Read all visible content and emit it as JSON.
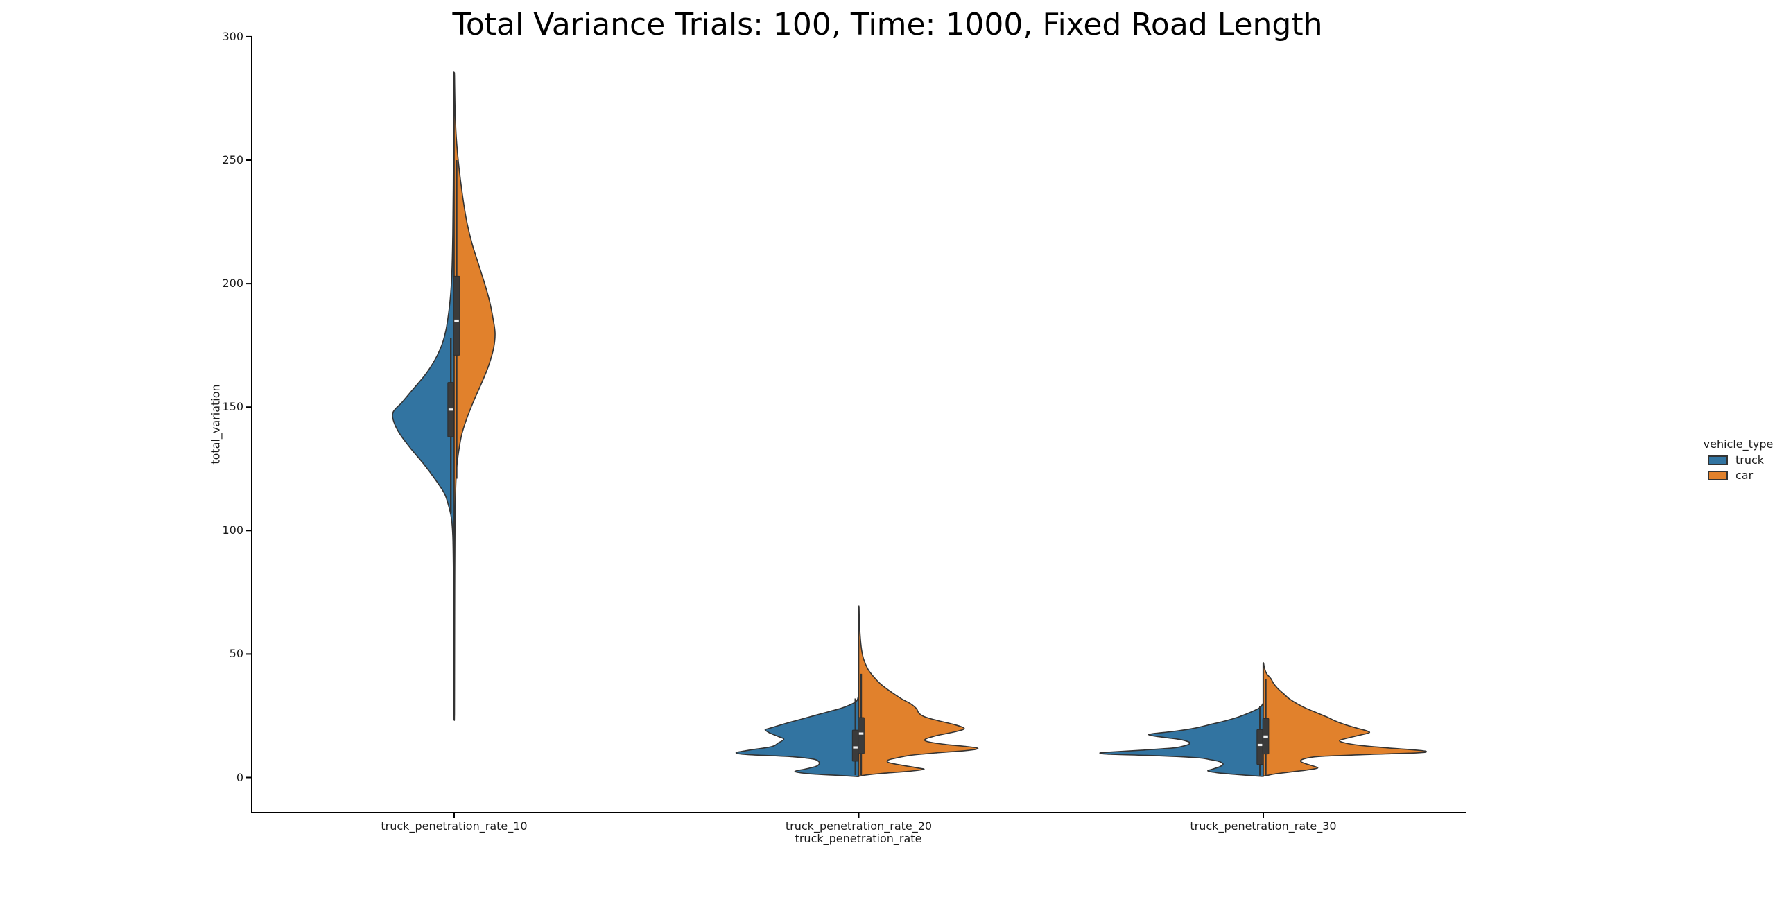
{
  "title": "Total Variance Trials: 100, Time: 1000, Fixed Road Length",
  "chart_data": {
    "type": "violin",
    "split_by_hue": true,
    "grid": false,
    "title": "Total Variance Trials: 100, Time: 1000, Fixed Road Length",
    "xlabel": "truck_penetration_rate",
    "ylabel": "total_variation",
    "categories": [
      "truck_penetration_rate_10",
      "truck_penetration_rate_20",
      "truck_penetration_rate_30"
    ],
    "ytick_labels": [
      "0",
      "50",
      "100",
      "150",
      "200",
      "250",
      "300"
    ],
    "ytick_values": [
      0,
      50,
      100,
      150,
      200,
      250,
      300
    ],
    "ylim": [
      -14,
      300
    ],
    "legend": {
      "title": "vehicle_type",
      "position": "right-outside",
      "entries": [
        {
          "label": "truck",
          "color": "#3274a1"
        },
        {
          "label": "car",
          "color": "#e1812c"
        }
      ]
    },
    "style": {
      "edge_color": "#333333",
      "box_fill": "#3b3b3b",
      "median_color": "#f2f2f2",
      "spine_color": "#000000"
    },
    "violins": [
      {
        "category": "truck_penetration_rate_10",
        "range": [
          25,
          284.5
        ],
        "halves": [
          {
            "vehicle_type": "truck",
            "side": "left",
            "color": "#3274a1",
            "box": {
              "median": 149,
              "q1": 138,
              "q3": 160,
              "whisker_low": 107,
              "whisker_high": 178
            },
            "peak_value": 148,
            "profile": [
              [
                284,
                0.5
              ],
              [
                262,
                0.9
              ],
              [
                240,
                1.3
              ],
              [
                220,
                2
              ],
              [
                205,
                3.2
              ],
              [
                196,
                5
              ],
              [
                188,
                8
              ],
              [
                181,
                12
              ],
              [
                175,
                18
              ],
              [
                169,
                28
              ],
              [
                163,
                42
              ],
              [
                157,
                60
              ],
              [
                152,
                75
              ],
              [
                148,
                88
              ],
              [
                144,
                87
              ],
              [
                139,
                78
              ],
              [
                133,
                62
              ],
              [
                127,
                44
              ],
              [
                121,
                28
              ],
              [
                115,
                14
              ],
              [
                110,
                8
              ],
              [
                105,
                4
              ],
              [
                98,
                2
              ],
              [
                85,
                1.2
              ],
              [
                65,
                0.8
              ],
              [
                45,
                0.6
              ],
              [
                25,
                0.4
              ]
            ]
          },
          {
            "vehicle_type": "car",
            "side": "right",
            "color": "#e1812c",
            "box": {
              "median": 185,
              "q1": 171,
              "q3": 203,
              "whisker_low": 121,
              "whisker_high": 250
            },
            "peak_value": 180,
            "profile": [
              [
                284.5,
                0.5
              ],
              [
                272,
                1.2
              ],
              [
                262,
                2.5
              ],
              [
                254,
                4.5
              ],
              [
                247,
                7
              ],
              [
                240,
                10
              ],
              [
                232,
                14
              ],
              [
                224,
                19
              ],
              [
                216,
                26
              ],
              [
                208,
                35
              ],
              [
                200,
                44
              ],
              [
                193,
                51
              ],
              [
                186,
                56
              ],
              [
                180,
                59
              ],
              [
                174,
                57
              ],
              [
                167,
                50
              ],
              [
                160,
                40
              ],
              [
                153,
                29
              ],
              [
                146,
                19
              ],
              [
                139,
                11
              ],
              [
                132,
                6.5
              ],
              [
                125,
                3.5
              ],
              [
                115,
                2
              ],
              [
                100,
                1.2
              ],
              [
                75,
                0.8
              ],
              [
                50,
                0.6
              ],
              [
                25,
                0.4
              ]
            ]
          }
        ]
      },
      {
        "category": "truck_penetration_rate_20",
        "range": [
          0.4,
          69
        ],
        "halves": [
          {
            "vehicle_type": "truck",
            "side": "left",
            "color": "#3274a1",
            "box": {
              "median": 12.2,
              "q1": 6.6,
              "q3": 19.2,
              "whisker_low": 1,
              "whisker_high": 32
            },
            "peak_value": 10,
            "profile": [
              [
                33,
                0.5
              ],
              [
                31,
                3
              ],
              [
                29.5,
                12
              ],
              [
                28,
                26
              ],
              [
                26,
                52
              ],
              [
                24,
                78
              ],
              [
                22,
                104
              ],
              [
                20,
                128
              ],
              [
                19.3,
                135
              ],
              [
                18,
                128
              ],
              [
                16.5,
                115
              ],
              [
                15.5,
                108
              ],
              [
                14,
                116
              ],
              [
                12.5,
                126
              ],
              [
                11,
                160
              ],
              [
                10,
                177
              ],
              [
                9.3,
                160
              ],
              [
                8.5,
                100
              ],
              [
                7.5,
                66
              ],
              [
                6.5,
                58
              ],
              [
                5.5,
                57
              ],
              [
                4.5,
                62
              ],
              [
                3.5,
                76
              ],
              [
                2.4,
                92
              ],
              [
                1.5,
                70
              ],
              [
                0.8,
                25
              ],
              [
                0.4,
                3
              ]
            ]
          },
          {
            "vehicle_type": "car",
            "side": "right",
            "color": "#e1812c",
            "box": {
              "median": 17.8,
              "q1": 9.7,
              "q3": 24.3,
              "whisker_low": 1,
              "whisker_high": 42
            },
            "peak_value": 12,
            "profile": [
              [
                69,
                0.4
              ],
              [
                63,
                1
              ],
              [
                57,
                2.2
              ],
              [
                52,
                4
              ],
              [
                48,
                7
              ],
              [
                44,
                13
              ],
              [
                41,
                21
              ],
              [
                38,
                31
              ],
              [
                35,
                45
              ],
              [
                32,
                61
              ],
              [
                30,
                74
              ],
              [
                28,
                83
              ],
              [
                26,
                87
              ],
              [
                24.5,
                96
              ],
              [
                23,
                115
              ],
              [
                21.5,
                137
              ],
              [
                20,
                152
              ],
              [
                18.8,
                143
              ],
              [
                17,
                113
              ],
              [
                15.5,
                96
              ],
              [
                14.5,
                100
              ],
              [
                13.5,
                122
              ],
              [
                12.5,
                158
              ],
              [
                11.8,
                172
              ],
              [
                11,
                158
              ],
              [
                10,
                112
              ],
              [
                9,
                75
              ],
              [
                8,
                56
              ],
              [
                7,
                42
              ],
              [
                6,
                44
              ],
              [
                5,
                62
              ],
              [
                4,
                83
              ],
              [
                3.3,
                94
              ],
              [
                2.5,
                72
              ],
              [
                1.7,
                35
              ],
              [
                1,
                10
              ],
              [
                0.6,
                2
              ]
            ]
          }
        ]
      },
      {
        "category": "truck_penetration_rate_30",
        "range": [
          0.4,
          46.3
        ],
        "halves": [
          {
            "vehicle_type": "truck",
            "side": "left",
            "color": "#3274a1",
            "box": {
              "median": 13.2,
              "q1": 5.3,
              "q3": 19.4,
              "whisker_low": 0.8,
              "whisker_high": 29
            },
            "peak_value": 10,
            "profile": [
              [
                30,
                0.4
              ],
              [
                28.5,
                4
              ],
              [
                27.5,
                10
              ],
              [
                26,
                22
              ],
              [
                24.5,
                36
              ],
              [
                23,
                54
              ],
              [
                21.5,
                76
              ],
              [
                20,
                99
              ],
              [
                18.8,
                126
              ],
              [
                17.8,
                158
              ],
              [
                17.3,
                165
              ],
              [
                16.5,
                150
              ],
              [
                15.5,
                122
              ],
              [
                14.5,
                108
              ],
              [
                13.8,
                106
              ],
              [
                13,
                112
              ],
              [
                12,
                130
              ],
              [
                11,
                180
              ],
              [
                10.2,
                228
              ],
              [
                9.8,
                235
              ],
              [
                9.4,
                220
              ],
              [
                8.8,
                150
              ],
              [
                8,
                95
              ],
              [
                7.3,
                78
              ],
              [
                6.5,
                64
              ],
              [
                5.5,
                58
              ],
              [
                4.5,
                62
              ],
              [
                3.5,
                72
              ],
              [
                2.7,
                80
              ],
              [
                2,
                68
              ],
              [
                1.2,
                38
              ],
              [
                0.5,
                4
              ]
            ]
          },
          {
            "vehicle_type": "car",
            "side": "right",
            "color": "#e1812c",
            "box": {
              "median": 16.6,
              "q1": 9.5,
              "q3": 23.9,
              "whisker_low": 0.8,
              "whisker_high": 40
            },
            "peak_value": 10.5,
            "profile": [
              [
                46.3,
                0.4
              ],
              [
                44,
                2
              ],
              [
                42,
                5
              ],
              [
                40,
                11
              ],
              [
                38,
                15
              ],
              [
                36,
                21
              ],
              [
                34,
                29
              ],
              [
                32,
                37
              ],
              [
                30,
                48
              ],
              [
                28,
                62
              ],
              [
                26,
                79
              ],
              [
                24.5,
                92
              ],
              [
                23,
                103
              ],
              [
                21.5,
                117
              ],
              [
                20,
                135
              ],
              [
                19,
                148
              ],
              [
                18.2,
                153
              ],
              [
                17.2,
                140
              ],
              [
                16,
                122
              ],
              [
                15,
                110
              ],
              [
                14,
                118
              ],
              [
                13,
                140
              ],
              [
                12,
                180
              ],
              [
                11,
                225
              ],
              [
                10.5,
                235
              ],
              [
                10,
                222
              ],
              [
                9.2,
                140
              ],
              [
                8.5,
                80
              ],
              [
                7.5,
                58
              ],
              [
                6.5,
                54
              ],
              [
                5.5,
                62
              ],
              [
                4.5,
                74
              ],
              [
                3.8,
                78
              ],
              [
                3,
                62
              ],
              [
                2.2,
                38
              ],
              [
                1.4,
                16
              ],
              [
                0.7,
                3
              ]
            ]
          }
        ]
      }
    ]
  }
}
